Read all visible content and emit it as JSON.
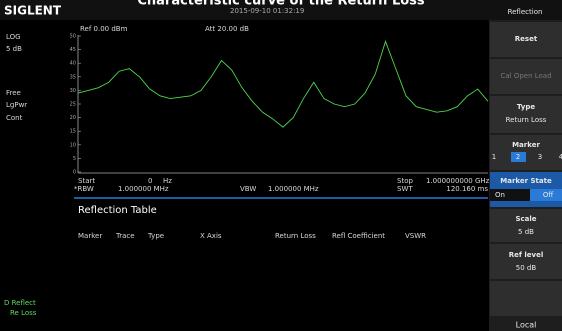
{
  "header": {
    "logo": "SIGLENT",
    "title": "Characteristic curve of the Return Loss",
    "datetime": "2015-09-10  01:32:19",
    "menu_title": "Reflection"
  },
  "left_panel": {
    "scale_type": "LOG",
    "scale_div": "5  dB",
    "trigger": "Free",
    "detector": "LgPwr",
    "sweep_mode": "Cont",
    "trace_label": "D Reflect",
    "trace_sublabel": "Re Loss"
  },
  "chart_data": {
    "type": "line",
    "ref_label": "Ref 0.00 dBm",
    "att_label": "Att 20.00 dB",
    "ylim": [
      0,
      50
    ],
    "yticks": [
      0,
      5,
      10,
      15,
      20,
      25,
      30,
      35,
      40,
      45,
      50
    ],
    "color": "#4fd64f",
    "values": [
      29,
      30,
      31,
      33,
      37,
      38,
      35,
      30.5,
      28,
      27,
      27.5,
      28,
      30,
      35,
      41,
      37.5,
      31,
      26,
      22,
      19.5,
      16.5,
      20,
      27,
      33,
      27,
      25,
      24,
      25,
      29,
      36,
      48,
      38,
      28,
      24,
      23,
      22,
      22.5,
      24,
      28,
      30.5,
      26
    ]
  },
  "sweep": {
    "start_label": "Start",
    "start_value": "0",
    "start_unit": "Hz",
    "rbw_label": "*RBW",
    "rbw_value": "1.000000 MHz",
    "vbw_label": "VBW",
    "vbw_value": "1.000000 MHz",
    "stop_label": "Stop",
    "stop_value": "1.000000000 GHz",
    "swt_label": "SWT",
    "swt_value": "120.160 ms"
  },
  "table": {
    "title": "Reflection Table",
    "columns": [
      "Marker",
      "Trace",
      "Type",
      "X Axis",
      "Return Loss",
      "Refl Coefficient",
      "VSWR"
    ]
  },
  "softkeys": {
    "reset": "Reset",
    "cal_open_load": "Cal Open Load",
    "type": {
      "label": "Type",
      "value": "Return Loss"
    },
    "marker": {
      "label": "Marker",
      "options": [
        "1",
        "2",
        "3",
        "4"
      ]
    },
    "marker_state": {
      "label": "Marker State",
      "options": [
        "On",
        "Off"
      ]
    },
    "scale": {
      "label": "Scale",
      "value": "5 dB"
    },
    "ref_level": {
      "label": "Ref level",
      "value": "50 dB"
    },
    "local": "Local"
  }
}
